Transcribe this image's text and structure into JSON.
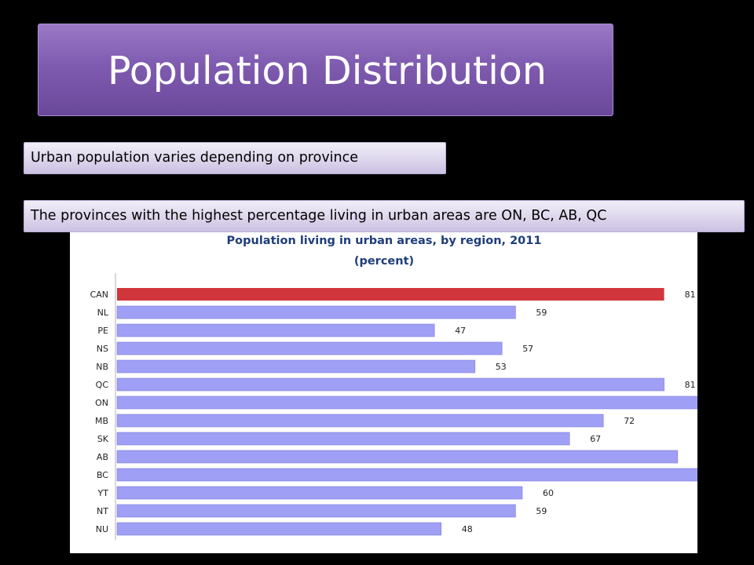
{
  "slide": {
    "title": "Population Distribution",
    "bullets": [
      "Urban population varies depending on province",
      "The provinces with the highest percentage living in urban areas are ON, BC, AB, QC"
    ]
  },
  "colors": {
    "highlight_bar": "#d0363c",
    "bar": "#9f9ff5",
    "bar_border": "#7b7be0",
    "title_fill": "#1f3d7a"
  },
  "chart_data": {
    "type": "bar",
    "orientation": "horizontal",
    "title": "Population living in urban areas, by region, 2011",
    "subtitle": "(percent)",
    "categories": [
      "CAN",
      "NL",
      "PE",
      "NS",
      "NB",
      "QC",
      "ON",
      "MB",
      "SK",
      "AB",
      "BC",
      "YT",
      "NT",
      "NU"
    ],
    "values": [
      81,
      59,
      47,
      57,
      53,
      81,
      86,
      72,
      67,
      83,
      86,
      60,
      59,
      48
    ],
    "highlight": [
      "CAN"
    ],
    "xlim": [
      0,
      100
    ],
    "grid": false,
    "data_labels": true
  }
}
